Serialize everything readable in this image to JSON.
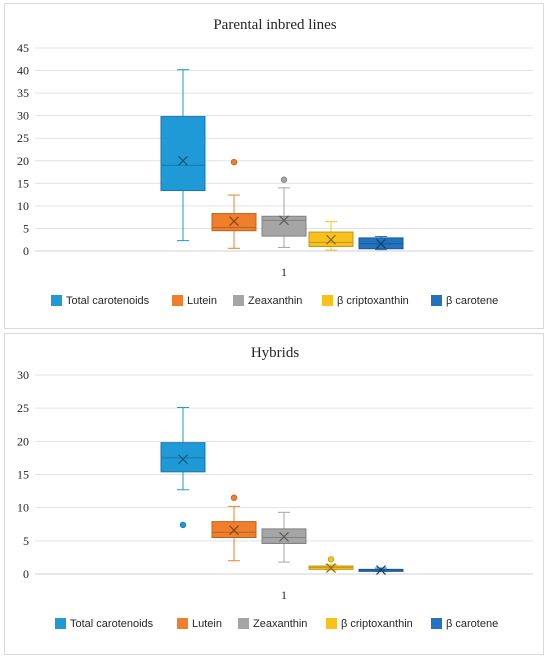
{
  "chart_data": [
    {
      "type": "box",
      "title": "Parental inbred lines",
      "xlabel": "",
      "ylabel": "",
      "categories": [
        "1"
      ],
      "ylim": [
        0,
        45
      ],
      "yticks": [
        0,
        5,
        10,
        15,
        20,
        25,
        30,
        35,
        40,
        45
      ],
      "grid": true,
      "legend_position": "bottom",
      "series": [
        {
          "name": "Total carotenoids",
          "color": "#1f9ad6",
          "min": 2.3,
          "q1": 13.4,
          "median": 19.0,
          "q3": 29.8,
          "max": 40.2,
          "mean": 20.0,
          "outliers": []
        },
        {
          "name": "Lutein",
          "color": "#f07f2d",
          "min": 0.6,
          "q1": 4.5,
          "median": 5.2,
          "q3": 8.3,
          "max": 12.4,
          "mean": 6.6,
          "outliers": [
            19.7
          ]
        },
        {
          "name": "Zeaxanthin",
          "color": "#a5a5a5",
          "min": 0.8,
          "q1": 3.3,
          "median": 6.8,
          "q3": 7.7,
          "max": 14.0,
          "mean": 6.8,
          "outliers": [
            15.8
          ]
        },
        {
          "name": "β criptoxanthin",
          "color": "#f8c11e",
          "min": 0.2,
          "q1": 1.0,
          "median": 1.9,
          "q3": 4.2,
          "max": 6.5,
          "mean": 2.5,
          "outliers": []
        },
        {
          "name": "β carotene",
          "color": "#2272bd",
          "min": 0.3,
          "q1": 0.5,
          "median": 1.6,
          "q3": 2.9,
          "max": 3.2,
          "mean": 1.6,
          "outliers": []
        }
      ]
    },
    {
      "type": "box",
      "title": "Hybrids",
      "xlabel": "",
      "ylabel": "",
      "categories": [
        "1"
      ],
      "ylim": [
        0,
        30
      ],
      "yticks": [
        0,
        5,
        10,
        15,
        20,
        25,
        30
      ],
      "grid": true,
      "legend_position": "bottom",
      "series": [
        {
          "name": "Total carotenoids",
          "color": "#1f9ad6",
          "min": 12.7,
          "q1": 15.4,
          "median": 17.5,
          "q3": 19.8,
          "max": 25.1,
          "mean": 17.3,
          "outliers": [
            7.4
          ]
        },
        {
          "name": "Lutein",
          "color": "#f07f2d",
          "min": 2.0,
          "q1": 5.5,
          "median": 6.3,
          "q3": 7.9,
          "max": 10.2,
          "mean": 6.6,
          "outliers": [
            11.5
          ]
        },
        {
          "name": "Zeaxanthin",
          "color": "#a5a5a5",
          "min": 1.8,
          "q1": 4.6,
          "median": 5.5,
          "q3": 6.8,
          "max": 9.3,
          "mean": 5.6,
          "outliers": []
        },
        {
          "name": "β criptoxanthin",
          "color": "#f8c11e",
          "min": 0.6,
          "q1": 0.7,
          "median": 1.0,
          "q3": 1.2,
          "max": 1.4,
          "mean": 0.9,
          "outliers": [
            2.2
          ]
        },
        {
          "name": "β carotene",
          "color": "#2272bd",
          "min": 0.4,
          "q1": 0.5,
          "median": 0.6,
          "q3": 0.7,
          "max": 0.9,
          "mean": 0.6,
          "outliers": []
        }
      ]
    }
  ]
}
